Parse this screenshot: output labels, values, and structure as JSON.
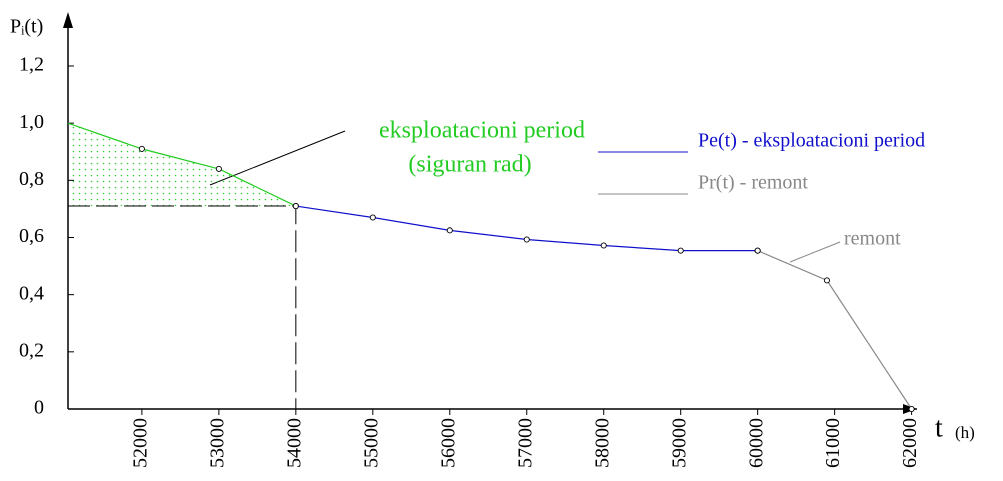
{
  "chart_data": {
    "type": "line",
    "y_label": "Pᵢ(t)",
    "x_label": "t",
    "x_unit": "(h)",
    "xlim": [
      51040,
      62200
    ],
    "ylim": [
      0,
      1.2
    ],
    "xticks": [
      52000,
      53000,
      54000,
      55000,
      56000,
      57000,
      58000,
      59000,
      60000,
      61000,
      62000
    ],
    "yticks": [
      0,
      {
        "value": 0.2,
        "label": "0,2"
      },
      {
        "value": 0.4,
        "label": "0,4"
      },
      {
        "value": 0.6,
        "label": "0,6"
      },
      {
        "value": 0.8,
        "label": "0,8"
      },
      {
        "value": 1.0,
        "label": "1,0"
      },
      {
        "value": 1.2,
        "label": "1,2"
      }
    ],
    "series": [
      {
        "color": "#22cc22",
        "x": [
          51040,
          52000,
          53000,
          54000
        ],
        "values": [
          1.0,
          0.91,
          0.84,
          0.71
        ]
      },
      {
        "name": "Pe(t) - eksploatacioni period",
        "color": "#1010cc",
        "x": [
          54000,
          55000,
          56000,
          57000,
          58000,
          59000,
          60000
        ],
        "values": [
          0.71,
          0.67,
          0.625,
          0.593,
          0.572,
          0.554,
          0.554
        ]
      },
      {
        "name": "Pr(t) - remont",
        "color": "#888888",
        "x": [
          60000,
          60900,
          62000
        ],
        "values": [
          0.554,
          0.45,
          0
        ]
      }
    ],
    "annotations": [
      "eksploatacioni period",
      "(siguran rad)",
      "remont"
    ]
  }
}
